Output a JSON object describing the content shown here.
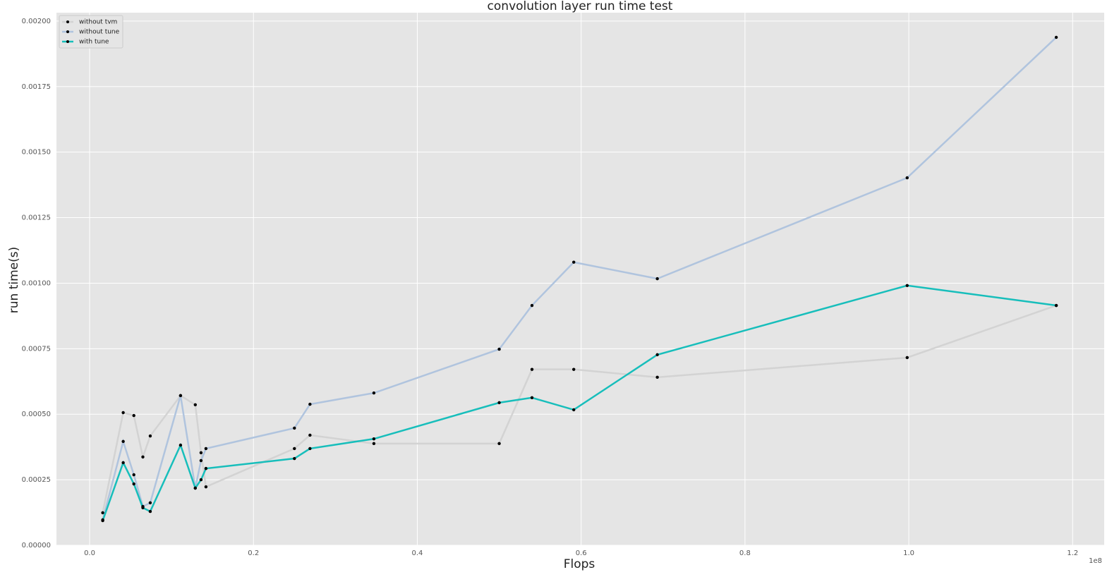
{
  "chart_data": {
    "type": "line",
    "title": "convolution layer run time test",
    "x_label": "Flops",
    "y_label": "run time(s)",
    "x_offset_label": "1e8",
    "x": [
      0.016,
      0.041,
      0.054,
      0.065,
      0.074,
      0.111,
      0.129,
      0.136,
      0.142,
      0.25,
      0.269,
      0.347,
      0.5,
      0.54,
      0.591,
      0.693,
      0.998,
      1.18
    ],
    "series": [
      {
        "name": "without tvm",
        "color": "#d3d3d3",
        "width": 2.5,
        "values": [
          0.000124,
          0.000506,
          0.000495,
          0.000337,
          0.000417,
          0.000571,
          0.000536,
          0.000353,
          0.000223,
          0.000369,
          0.00042,
          0.000388,
          0.000388,
          0.000671,
          0.000671,
          0.000641,
          0.000716,
          0.000915
        ]
      },
      {
        "name": "without tune",
        "color": "#b0c4de",
        "width": 2.5,
        "values": [
          9.7e-05,
          0.000396,
          0.000269,
          0.000148,
          0.000162,
          0.000571,
          0.000218,
          0.000323,
          0.000369,
          0.000447,
          0.000538,
          0.000581,
          0.000748,
          0.000915,
          0.00108,
          0.001017,
          0.001402,
          0.001938
        ]
      },
      {
        "name": "with tune",
        "color": "#17bebb",
        "width": 2.5,
        "values": [
          9.4e-05,
          0.000315,
          0.000234,
          0.000143,
          0.000129,
          0.000382,
          0.000218,
          0.00025,
          0.000293,
          0.000331,
          0.000369,
          0.000406,
          0.000544,
          0.000563,
          0.000517,
          0.000727,
          0.000991,
          0.000915
        ]
      }
    ],
    "marker_color": "#000000",
    "xlim": [
      -0.0405,
      1.2385
    ],
    "ylim": [
      0,
      0.002032
    ],
    "xticks": [
      {
        "value": 0,
        "label": "0.0"
      },
      0.2,
      0.4,
      0.6,
      0.8,
      {
        "value": 1,
        "label": "1.0"
      },
      1.2
    ],
    "yticks": [
      {
        "value": 0,
        "label": "0.00000"
      },
      {
        "value": 0.00025,
        "label": "0.00025"
      },
      {
        "value": 0.0005,
        "label": "0.00050"
      },
      {
        "value": 0.00075,
        "label": "0.00075"
      },
      {
        "value": 0.001,
        "label": "0.00100"
      },
      {
        "value": 0.00125,
        "label": "0.00125"
      },
      {
        "value": 0.0015,
        "label": "0.00150"
      },
      {
        "value": 0.00175,
        "label": "0.00175"
      },
      {
        "value": 0.002,
        "label": "0.00200"
      }
    ],
    "grid": true,
    "legend": "upper left"
  }
}
